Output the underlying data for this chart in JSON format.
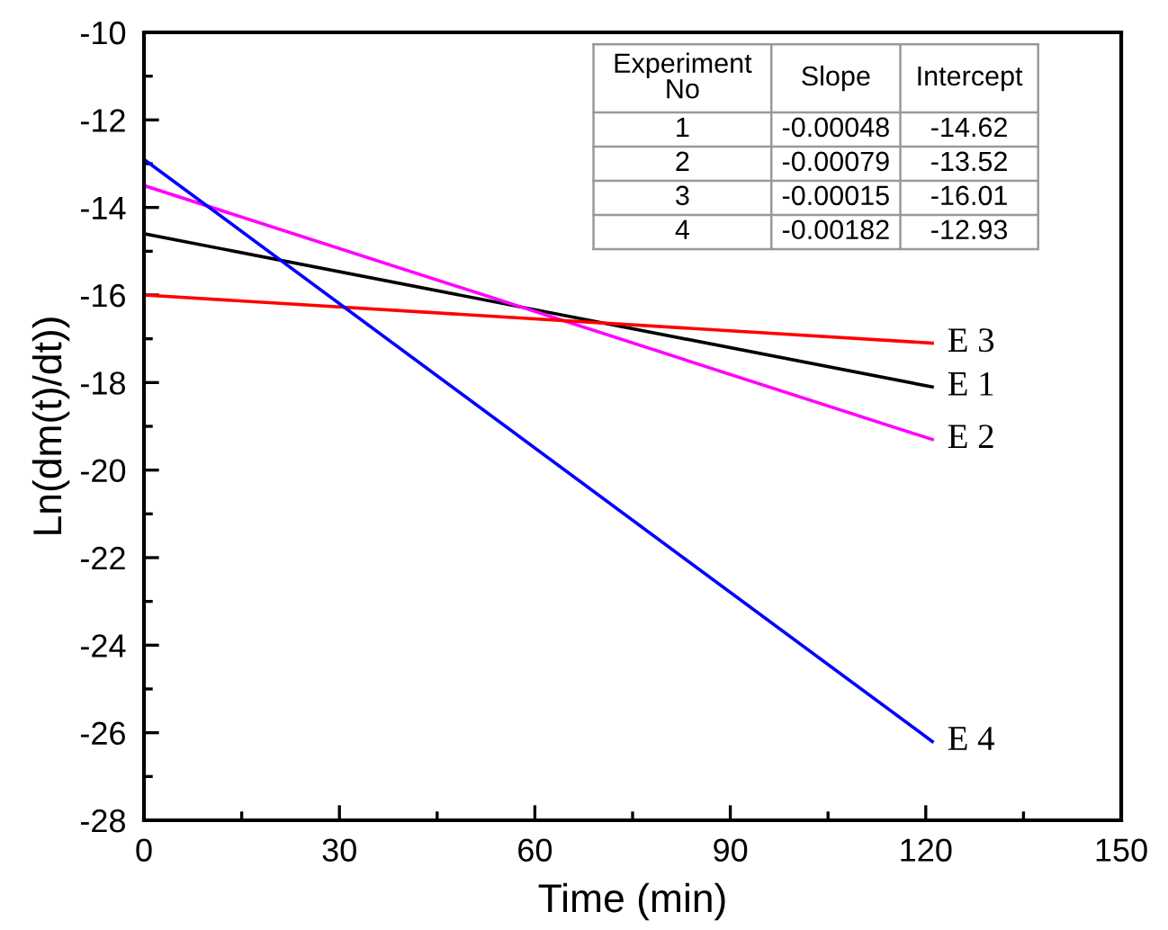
{
  "chart_data": {
    "type": "line",
    "xlabel": "Time (min)",
    "ylabel": "Ln(dm(t)/dt))",
    "x": [
      0,
      121
    ],
    "series": [
      {
        "name": "E 1",
        "color": "#000000",
        "values": [
          -14.6,
          -18.1
        ]
      },
      {
        "name": "E 2",
        "color": "#ff00ff",
        "values": [
          -13.5,
          -19.3
        ]
      },
      {
        "name": "E 3",
        "color": "#ff0000",
        "values": [
          -16.0,
          -17.1
        ]
      },
      {
        "name": "E 4",
        "color": "#0000ff",
        "values": [
          -12.9,
          -26.2
        ]
      }
    ],
    "xlim": [
      0,
      150
    ],
    "xticks": [
      0,
      30,
      60,
      90,
      120,
      150
    ],
    "ylim": [
      -28,
      -10
    ],
    "yticks": [
      -28,
      -26,
      -24,
      -22,
      -20,
      -18,
      -16,
      -14,
      -12,
      -10
    ],
    "grid": false,
    "legend": false,
    "marker": "none",
    "line_style": "solid",
    "annotations": [
      "Experiment\nNo",
      "Slope",
      "Intercept",
      "1",
      "-0.00048",
      "-14.62",
      "2",
      "-0.00079",
      "-13.52",
      "3",
      "-0.00015",
      "-16.01",
      "4",
      "-0.00182",
      "-12.93"
    ]
  }
}
